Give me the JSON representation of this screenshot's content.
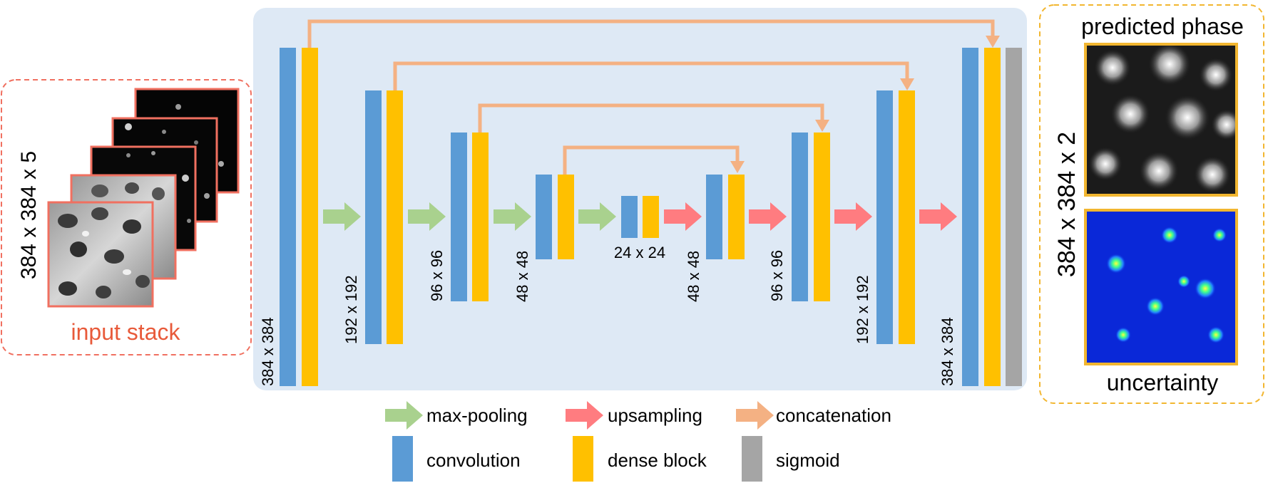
{
  "input_panel": {
    "label": "input stack",
    "dims": "384 x 384 x 5",
    "image_desc": "stack of five microscopy frames (phase-contrast cells)"
  },
  "output_panel": {
    "title": "predicted phase",
    "subtitle": "uncertainty",
    "dims": "384 x 384 x 2",
    "top_image_desc": "grayscale predicted phase map",
    "bottom_image_desc": "blue jet-colormap uncertainty map"
  },
  "network": {
    "levels": [
      {
        "label": "384 x 384"
      },
      {
        "label": "192 x 192"
      },
      {
        "label": "96 x 96"
      },
      {
        "label": "48 x 48"
      },
      {
        "label": "24 x 24"
      },
      {
        "label": "48 x 48"
      },
      {
        "label": "96 x 96"
      },
      {
        "label": "192 x 192"
      },
      {
        "label": "384 x 384"
      }
    ]
  },
  "legend": {
    "max_pooling": "max-pooling",
    "upsampling": "upsampling",
    "concatenation": "concatenation",
    "convolution": "convolution",
    "dense_block": "dense block",
    "sigmoid": "sigmoid"
  },
  "colors": {
    "convolution": "#5b9bd5",
    "dense_block": "#ffc000",
    "sigmoid": "#a5a5a5",
    "max_pooling": "#a9d18e",
    "upsampling": "#ff7c80",
    "concatenation": "#f4b183",
    "network_bg": "#dee9f5",
    "input_border": "#f07060",
    "input_text": "#e85a3a",
    "output_border": "#f2b630"
  }
}
